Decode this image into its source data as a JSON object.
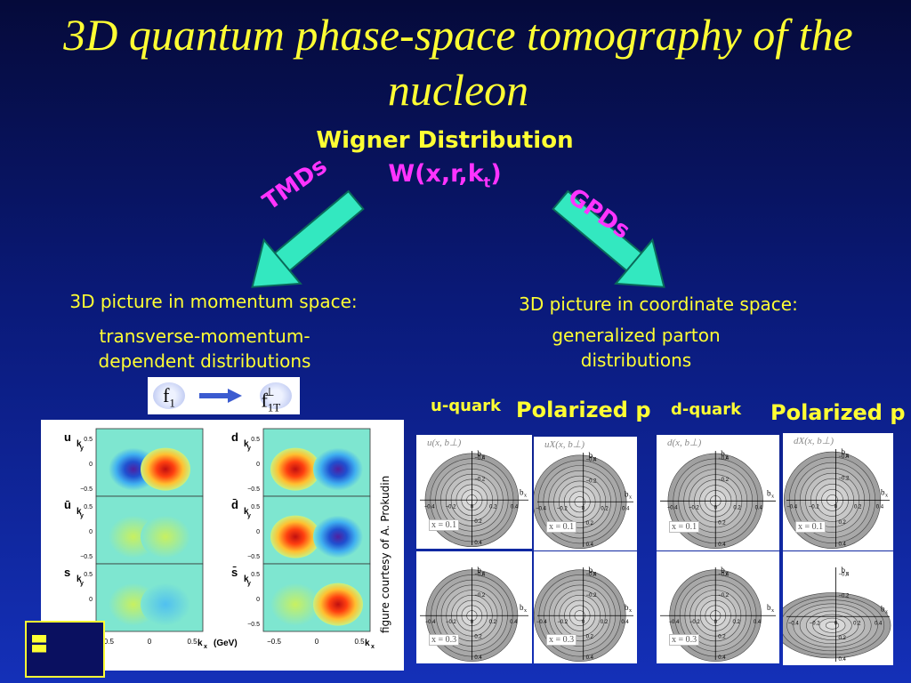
{
  "title": "3D quantum phase-space tomography of the nucleon",
  "wigner": {
    "title": "Wigner Distribution",
    "formula_main": "W(x,r,k",
    "formula_sub": "t",
    "formula_close": ")"
  },
  "arrows": {
    "left_label": "TMDs",
    "right_label": "GPDs",
    "color": "#33e8c0"
  },
  "momentum": {
    "heading": "3D picture in momentum space:",
    "subtext": "transverse-momentum-dependent distributions",
    "f_left": "f",
    "f_left_sub": "1",
    "f_right": "f",
    "f_right_sub": "1T",
    "f_right_sup": "⊥",
    "credit": "figure courtesy of A. Prokudin",
    "plot_left_rows": [
      "u",
      "ū",
      "s"
    ],
    "plot_right_rows": [
      "d",
      "d̄",
      "s̄"
    ],
    "y_axis_var": "k",
    "y_axis_var_sub": "y",
    "x_axis_var": "k",
    "x_axis_var_sub": "x",
    "x_unit": "(GeV)",
    "x_ticks": [
      "−0.5",
      "0",
      "0.5"
    ],
    "y_ticks": [
      "0.5",
      "0",
      "−0.5"
    ]
  },
  "coordinate": {
    "heading": "3D picture in coordinate space:",
    "subtext": "generalized parton distributions",
    "u_quark_label": "u-quark",
    "u_polarized_label": "Polarized p",
    "d_quark_label": "d-quark",
    "d_polarized_label": "Polarized p",
    "panels": [
      {
        "title": "u(x, b⊥)",
        "x_label": "x = 0.1"
      },
      {
        "title": "uX(x, b⊥)",
        "x_label": "x = 0.1"
      },
      {
        "title": "",
        "x_label": "x = 0.3"
      },
      {
        "title": "",
        "x_label": "x = 0.3"
      },
      {
        "title": "d(x, b⊥)",
        "x_label": "x = 0.1"
      },
      {
        "title": "dX(x, b⊥)",
        "x_label": "x = 0.1"
      },
      {
        "title": "",
        "x_label": "x = 0.3"
      },
      {
        "title": "",
        "x_label": ""
      }
    ],
    "axis_x_var": "b",
    "axis_x_sub": "x",
    "axis_y_var": "b",
    "axis_y_sub": "y",
    "ticks": [
      "−0.4",
      "−0.2",
      "0",
      "0.2",
      "0.4"
    ]
  },
  "colors": {
    "title": "#ffff33",
    "formula": "#ff33ff",
    "bg_top": "#050a3a",
    "bg_bottom": "#1430b8"
  }
}
